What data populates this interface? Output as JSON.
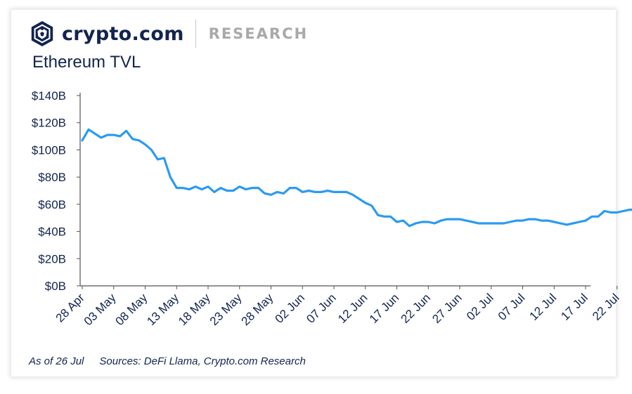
{
  "header": {
    "brand_name": "crypto.com",
    "section": "RESEARCH",
    "logo_icon": "crypto-com-lion-shield-icon"
  },
  "colors": {
    "navy": "#12244f",
    "line": "#2b9bf0",
    "axis": "#555555",
    "divider": "#c8c8c8"
  },
  "footer": {
    "as_of": "As of 26 Jul",
    "sources": "Sources:  DeFi Llama, Crypto.com Research"
  },
  "chart_data": {
    "type": "line",
    "title": "Ethereum TVL",
    "xlabel": "",
    "ylabel": "",
    "grid": false,
    "legend": "none",
    "ylim": [
      0,
      140
    ],
    "y_ticks": [
      0,
      20,
      40,
      60,
      80,
      100,
      120,
      140
    ],
    "y_tick_labels": [
      "$0B",
      "$20B",
      "$40B",
      "$60B",
      "$80B",
      "$100B",
      "$120B",
      "$140B"
    ],
    "x_start": "28 Apr",
    "x_end": "26 Jul",
    "x_tick_labels": [
      "28 Apr",
      "03 May",
      "08 May",
      "13 May",
      "18 May",
      "23 May",
      "28 May",
      "02 Jun",
      "07 Jun",
      "12 Jun",
      "17 Jun",
      "22 Jun",
      "27 Jun",
      "02 Jul",
      "07 Jul",
      "12 Jul",
      "17 Jul",
      "22 Jul"
    ],
    "series": [
      {
        "name": "",
        "unit": "$B",
        "x": [
          "28 Apr",
          "29 Apr",
          "30 Apr",
          "01 May",
          "02 May",
          "03 May",
          "04 May",
          "05 May",
          "06 May",
          "07 May",
          "08 May",
          "09 May",
          "10 May",
          "11 May",
          "12 May",
          "13 May",
          "14 May",
          "15 May",
          "16 May",
          "17 May",
          "18 May",
          "19 May",
          "20 May",
          "21 May",
          "22 May",
          "23 May",
          "24 May",
          "25 May",
          "26 May",
          "27 May",
          "28 May",
          "29 May",
          "30 May",
          "31 May",
          "01 Jun",
          "02 Jun",
          "03 Jun",
          "04 Jun",
          "05 Jun",
          "06 Jun",
          "07 Jun",
          "08 Jun",
          "09 Jun",
          "10 Jun",
          "11 Jun",
          "12 Jun",
          "13 Jun",
          "14 Jun",
          "15 Jun",
          "16 Jun",
          "17 Jun",
          "18 Jun",
          "19 Jun",
          "20 Jun",
          "21 Jun",
          "22 Jun",
          "23 Jun",
          "24 Jun",
          "25 Jun",
          "26 Jun",
          "27 Jun",
          "28 Jun",
          "29 Jun",
          "30 Jun",
          "01 Jul",
          "02 Jul",
          "03 Jul",
          "04 Jul",
          "05 Jul",
          "06 Jul",
          "07 Jul",
          "08 Jul",
          "09 Jul",
          "10 Jul",
          "11 Jul",
          "12 Jul",
          "13 Jul",
          "14 Jul",
          "15 Jul",
          "16 Jul",
          "17 Jul",
          "18 Jul",
          "19 Jul",
          "20 Jul",
          "21 Jul",
          "22 Jul",
          "23 Jul",
          "24 Jul",
          "25 Jul",
          "26 Jul"
        ],
        "values": [
          107,
          115,
          112,
          109,
          111,
          111,
          110,
          114,
          108,
          107,
          104,
          100,
          93,
          94,
          80,
          72,
          72,
          71,
          73,
          71,
          73,
          69,
          72,
          70,
          70,
          73,
          71,
          72,
          72,
          68,
          67,
          69,
          68,
          72,
          72,
          69,
          70,
          69,
          69,
          70,
          69,
          69,
          69,
          67,
          64,
          61,
          59,
          52,
          51,
          51,
          47,
          48,
          44,
          46,
          47,
          47,
          46,
          48,
          49,
          49,
          49,
          48,
          47,
          46,
          46,
          46,
          46,
          46,
          47,
          48,
          48,
          49,
          49,
          48,
          48,
          47,
          46,
          45,
          46,
          47,
          48,
          51,
          51,
          55,
          54,
          54,
          55,
          56,
          56,
          55
        ]
      }
    ]
  }
}
